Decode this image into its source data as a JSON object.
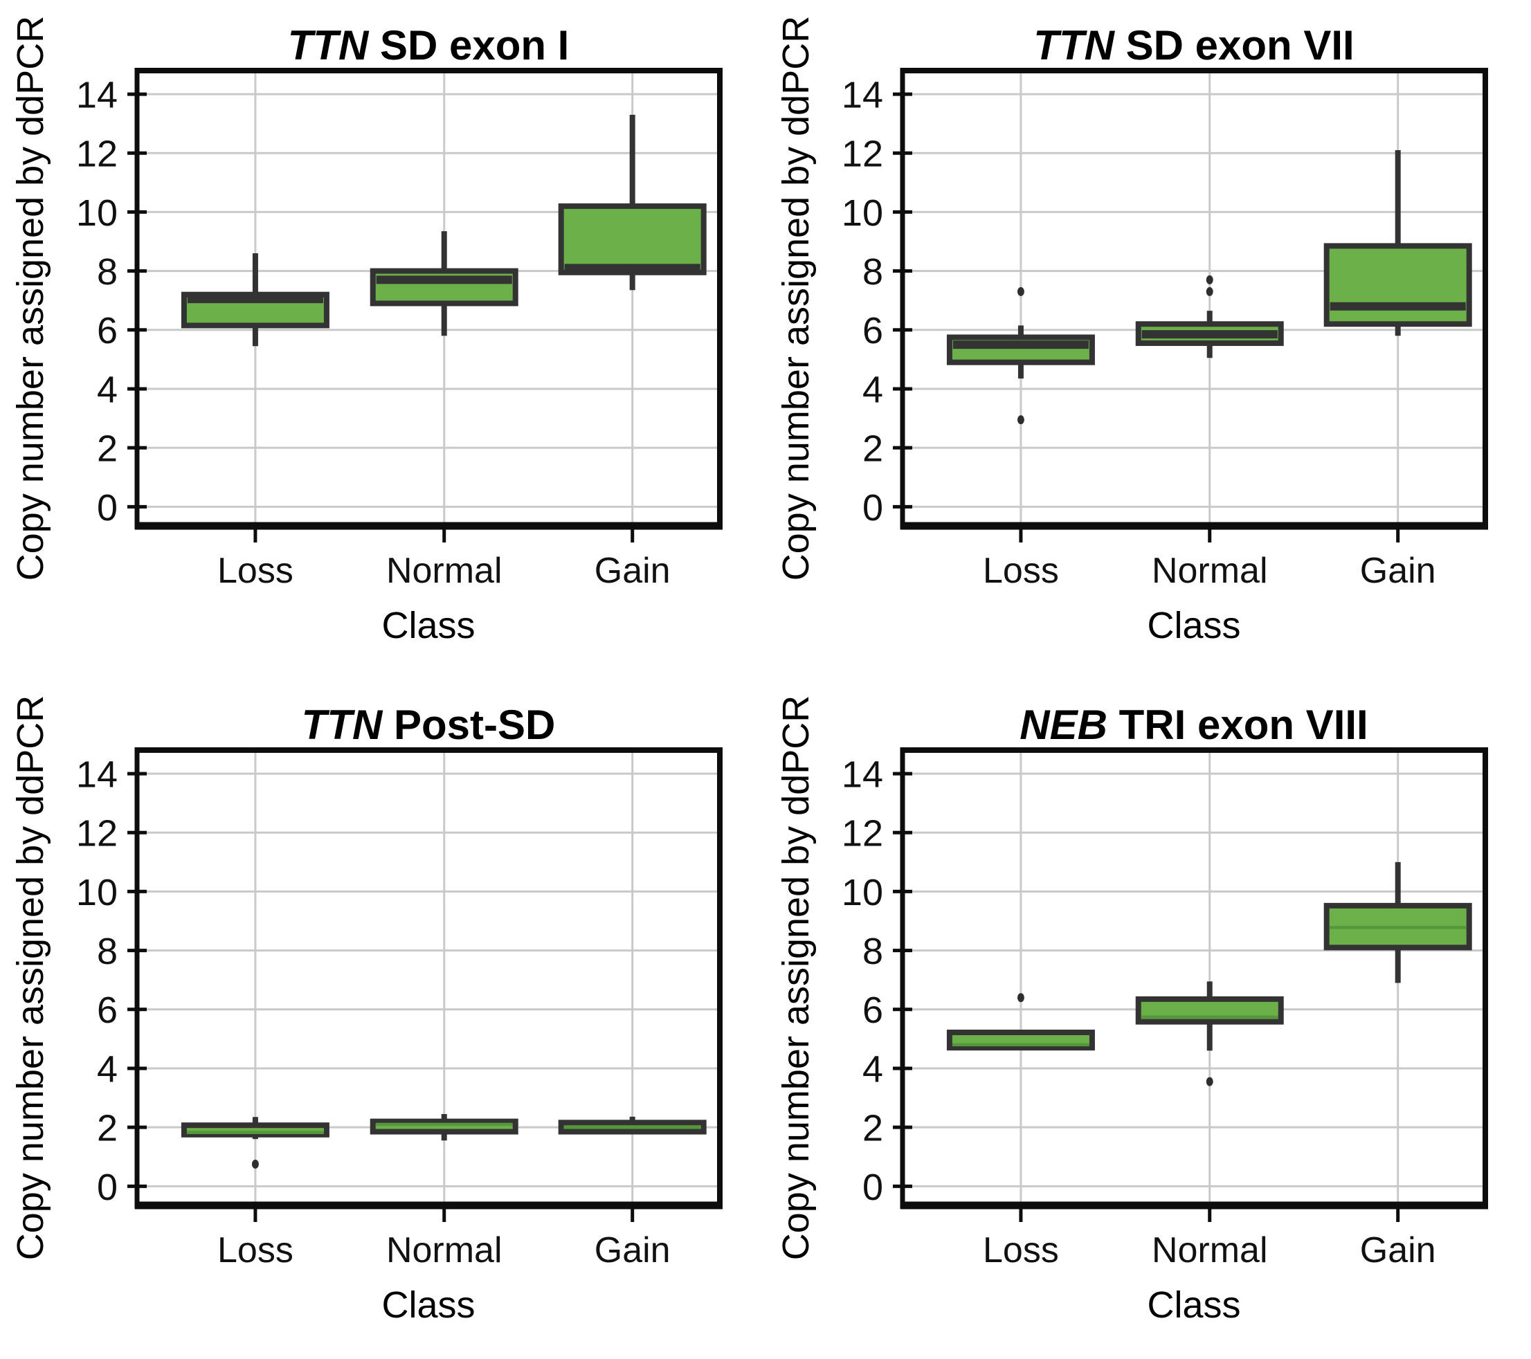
{
  "figure": {
    "ylabel": "Copy number assigned by ddPCR",
    "xlabel": "Class",
    "categories": [
      "Loss",
      "Normal",
      "Gain"
    ]
  },
  "colors": {
    "box_fill": "#6cb04a",
    "box_edge": "#333333",
    "median_dark": "#333333",
    "median_green": "#55973a",
    "whisker": "#333333",
    "outlier": "#2e2e2e",
    "grid_line": "#c9c9c9",
    "spine": "#0d0d0d",
    "text": "#000000"
  },
  "chart_data": {
    "type": "box",
    "grid": true,
    "legend": "none",
    "panels": [
      {
        "title": "TTN SD exon I",
        "title_gene": "TTN",
        "title_rest": " SD exon I",
        "xlabel": "Class",
        "ylabel": "Copy number assigned by ddPCR",
        "categories": [
          "Loss",
          "Normal",
          "Gain"
        ],
        "yticks": [
          0,
          2,
          4,
          6,
          8,
          10,
          12,
          14
        ],
        "ylim": [
          -0.65,
          14.8
        ],
        "median_style": "thick-dark",
        "boxes": [
          {
            "category": "Loss",
            "whislo": 5.45,
            "q1": 6.15,
            "med": 7.05,
            "q3": 7.2,
            "whishi": 8.6,
            "outliers": []
          },
          {
            "category": "Normal",
            "whislo": 5.8,
            "q1": 6.9,
            "med": 7.7,
            "q3": 8.0,
            "whishi": 9.35,
            "outliers": []
          },
          {
            "category": "Gain",
            "whislo": 7.35,
            "q1": 7.95,
            "med": 8.1,
            "q3": 10.2,
            "whishi": 13.3,
            "outliers": []
          }
        ]
      },
      {
        "title": "TTN SD exon VII",
        "title_gene": "TTN",
        "title_rest": " SD exon VII",
        "xlabel": "Class",
        "ylabel": "Copy number assigned by ddPCR",
        "categories": [
          "Loss",
          "Normal",
          "Gain"
        ],
        "yticks": [
          0,
          2,
          4,
          6,
          8,
          10,
          12,
          14
        ],
        "ylim": [
          -0.65,
          14.8
        ],
        "median_style": "thick-dark",
        "boxes": [
          {
            "category": "Loss",
            "whislo": 4.35,
            "q1": 4.9,
            "med": 5.5,
            "q3": 5.75,
            "whishi": 6.15,
            "outliers": [
              7.3,
              2.95
            ]
          },
          {
            "category": "Normal",
            "whislo": 5.05,
            "q1": 5.55,
            "med": 5.85,
            "q3": 6.2,
            "whishi": 6.65,
            "outliers": [
              7.7,
              7.3
            ]
          },
          {
            "category": "Gain",
            "whislo": 5.8,
            "q1": 6.2,
            "med": 6.8,
            "q3": 8.85,
            "whishi": 12.1,
            "outliers": []
          }
        ]
      },
      {
        "title": "TTN Post-SD",
        "title_gene": "TTN",
        "title_rest": " Post-SD",
        "xlabel": "Class",
        "ylabel": "Copy number assigned by ddPCR",
        "categories": [
          "Loss",
          "Normal",
          "Gain"
        ],
        "yticks": [
          0,
          2,
          4,
          6,
          8,
          10,
          12,
          14
        ],
        "ylim": [
          -0.65,
          14.8
        ],
        "median_style": "thin-green",
        "boxes": [
          {
            "category": "Loss",
            "whislo": 1.6,
            "q1": 1.75,
            "med": 1.82,
            "q3": 2.07,
            "whishi": 2.35,
            "outliers": [
              0.75
            ]
          },
          {
            "category": "Normal",
            "whislo": 1.55,
            "q1": 1.85,
            "med": 2.1,
            "q3": 2.2,
            "whishi": 2.45,
            "outliers": []
          },
          {
            "category": "Gain",
            "whislo": 1.85,
            "q1": 1.85,
            "med": 2.0,
            "q3": 2.16,
            "whishi": 2.36,
            "outliers": []
          }
        ]
      },
      {
        "title": "NEB TRI exon VIII",
        "title_gene": "NEB",
        "title_rest": " TRI exon VIII",
        "xlabel": "Class",
        "ylabel": "Copy number assigned by ddPCR",
        "categories": [
          "Loss",
          "Normal",
          "Gain"
        ],
        "yticks": [
          0,
          2,
          4,
          6,
          8,
          10,
          12,
          14
        ],
        "ylim": [
          -0.65,
          14.8
        ],
        "median_style": "thin-green",
        "boxes": [
          {
            "category": "Loss",
            "whislo": 4.7,
            "q1": 4.7,
            "med": 4.8,
            "q3": 5.22,
            "whishi": 5.22,
            "outliers": [
              6.4
            ]
          },
          {
            "category": "Normal",
            "whislo": 4.6,
            "q1": 5.58,
            "med": 5.74,
            "q3": 6.35,
            "whishi": 6.95,
            "outliers": [
              3.55
            ]
          },
          {
            "category": "Gain",
            "whislo": 6.9,
            "q1": 8.1,
            "med": 8.78,
            "q3": 9.52,
            "whishi": 11.0,
            "outliers": []
          }
        ]
      }
    ]
  }
}
